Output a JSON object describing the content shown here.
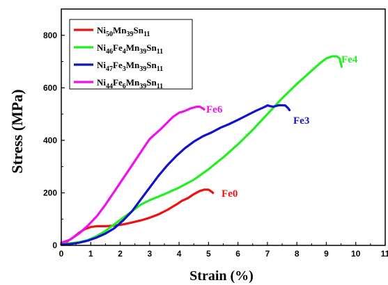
{
  "chart_data": {
    "type": "line",
    "xlabel": "Strain (%)",
    "ylabel": "Stress (MPa)",
    "xlim": [
      0,
      11
    ],
    "ylim": [
      0,
      900
    ],
    "x_ticks": [
      "0",
      "1",
      "2",
      "3",
      "4",
      "5",
      "6",
      "7",
      "8",
      "9",
      "10",
      "11"
    ],
    "y_ticks": [
      "0",
      "200",
      "400",
      "600",
      "800"
    ],
    "grid": false,
    "legend_position": "top-left",
    "series": [
      {
        "name": "Ni50Mn39Sn11",
        "legend": [
          {
            "t": "Ni"
          },
          {
            "t": "50",
            "sub": true
          },
          {
            "t": "Mn"
          },
          {
            "t": "39",
            "sub": true
          },
          {
            "t": "Sn"
          },
          {
            "t": "11",
            "sub": true
          }
        ],
        "annotation": "Fe0",
        "color": "#ee1111",
        "points": [
          [
            0,
            8
          ],
          [
            0.2,
            15
          ],
          [
            0.4,
            30
          ],
          [
            0.6,
            48
          ],
          [
            0.8,
            62
          ],
          [
            1.0,
            70
          ],
          [
            1.2,
            73
          ],
          [
            1.5,
            73
          ],
          [
            1.8,
            75
          ],
          [
            2.1,
            80
          ],
          [
            2.4,
            87
          ],
          [
            2.7,
            95
          ],
          [
            3.0,
            105
          ],
          [
            3.3,
            118
          ],
          [
            3.6,
            135
          ],
          [
            3.9,
            155
          ],
          [
            4.1,
            170
          ],
          [
            4.3,
            180
          ],
          [
            4.5,
            195
          ],
          [
            4.7,
            207
          ],
          [
            4.85,
            212
          ],
          [
            5.0,
            212
          ],
          [
            5.1,
            205
          ],
          [
            5.15,
            200
          ]
        ]
      },
      {
        "name": "Ni46Fe4Mn39Sn11",
        "legend": [
          {
            "t": "Ni"
          },
          {
            "t": "46",
            "sub": true
          },
          {
            "t": "Fe"
          },
          {
            "t": "4",
            "sub": true
          },
          {
            "t": "Mn"
          },
          {
            "t": "39",
            "sub": true
          },
          {
            "t": "Sn"
          },
          {
            "t": "11",
            "sub": true
          }
        ],
        "annotation": "Fe4",
        "color": "#22ee22",
        "points": [
          [
            0,
            5
          ],
          [
            0.3,
            8
          ],
          [
            0.6,
            12
          ],
          [
            0.9,
            20
          ],
          [
            1.2,
            35
          ],
          [
            1.5,
            55
          ],
          [
            1.8,
            80
          ],
          [
            2.1,
            105
          ],
          [
            2.4,
            130
          ],
          [
            2.7,
            155
          ],
          [
            3.0,
            172
          ],
          [
            3.5,
            195
          ],
          [
            4.0,
            220
          ],
          [
            4.5,
            250
          ],
          [
            5.0,
            290
          ],
          [
            5.5,
            335
          ],
          [
            6.0,
            385
          ],
          [
            6.5,
            440
          ],
          [
            7.0,
            500
          ],
          [
            7.5,
            560
          ],
          [
            8.0,
            615
          ],
          [
            8.5,
            665
          ],
          [
            8.8,
            695
          ],
          [
            9.0,
            712
          ],
          [
            9.2,
            720
          ],
          [
            9.35,
            720
          ],
          [
            9.45,
            712
          ],
          [
            9.5,
            690
          ],
          [
            9.52,
            680
          ]
        ]
      },
      {
        "name": "Ni47Fe3Mn39Sn11",
        "legend": [
          {
            "t": "Ni"
          },
          {
            "t": "47",
            "sub": true
          },
          {
            "t": "Fe"
          },
          {
            "t": "3",
            "sub": true
          },
          {
            "t": "Mn"
          },
          {
            "t": "39",
            "sub": true
          },
          {
            "t": "Sn"
          },
          {
            "t": "11",
            "sub": true
          }
        ],
        "annotation": "Fe3",
        "color": "#1111cc",
        "points": [
          [
            0,
            3
          ],
          [
            0.3,
            5
          ],
          [
            0.6,
            10
          ],
          [
            0.9,
            18
          ],
          [
            1.2,
            30
          ],
          [
            1.5,
            45
          ],
          [
            1.8,
            65
          ],
          [
            2.1,
            95
          ],
          [
            2.4,
            130
          ],
          [
            2.7,
            175
          ],
          [
            3.0,
            220
          ],
          [
            3.3,
            265
          ],
          [
            3.6,
            305
          ],
          [
            3.9,
            340
          ],
          [
            4.2,
            370
          ],
          [
            4.5,
            395
          ],
          [
            4.8,
            415
          ],
          [
            5.1,
            430
          ],
          [
            5.4,
            448
          ],
          [
            5.7,
            462
          ],
          [
            6.0,
            478
          ],
          [
            6.3,
            495
          ],
          [
            6.6,
            512
          ],
          [
            6.9,
            527
          ],
          [
            7.0,
            533
          ],
          [
            7.1,
            530
          ],
          [
            7.2,
            528
          ],
          [
            7.4,
            534
          ],
          [
            7.6,
            533
          ],
          [
            7.7,
            523
          ],
          [
            7.75,
            515
          ]
        ]
      },
      {
        "name": "Ni44Fe6Mn39Sn11",
        "legend": [
          {
            "t": "Ni"
          },
          {
            "t": "44",
            "sub": true
          },
          {
            "t": "Fe"
          },
          {
            "t": "6",
            "sub": true
          },
          {
            "t": "Mn"
          },
          {
            "t": "39",
            "sub": true
          },
          {
            "t": "Sn"
          },
          {
            "t": "11",
            "sub": true
          }
        ],
        "annotation": "Fe6",
        "color": "#ee11ee",
        "points": [
          [
            0,
            10
          ],
          [
            0.3,
            22
          ],
          [
            0.6,
            45
          ],
          [
            0.9,
            75
          ],
          [
            1.2,
            110
          ],
          [
            1.5,
            155
          ],
          [
            1.8,
            205
          ],
          [
            2.1,
            255
          ],
          [
            2.4,
            305
          ],
          [
            2.7,
            355
          ],
          [
            3.0,
            405
          ],
          [
            3.2,
            425
          ],
          [
            3.4,
            445
          ],
          [
            3.6,
            468
          ],
          [
            3.8,
            490
          ],
          [
            4.0,
            505
          ],
          [
            4.2,
            512
          ],
          [
            4.4,
            522
          ],
          [
            4.6,
            528
          ],
          [
            4.7,
            528
          ],
          [
            4.8,
            522
          ],
          [
            4.85,
            518
          ]
        ]
      }
    ]
  }
}
